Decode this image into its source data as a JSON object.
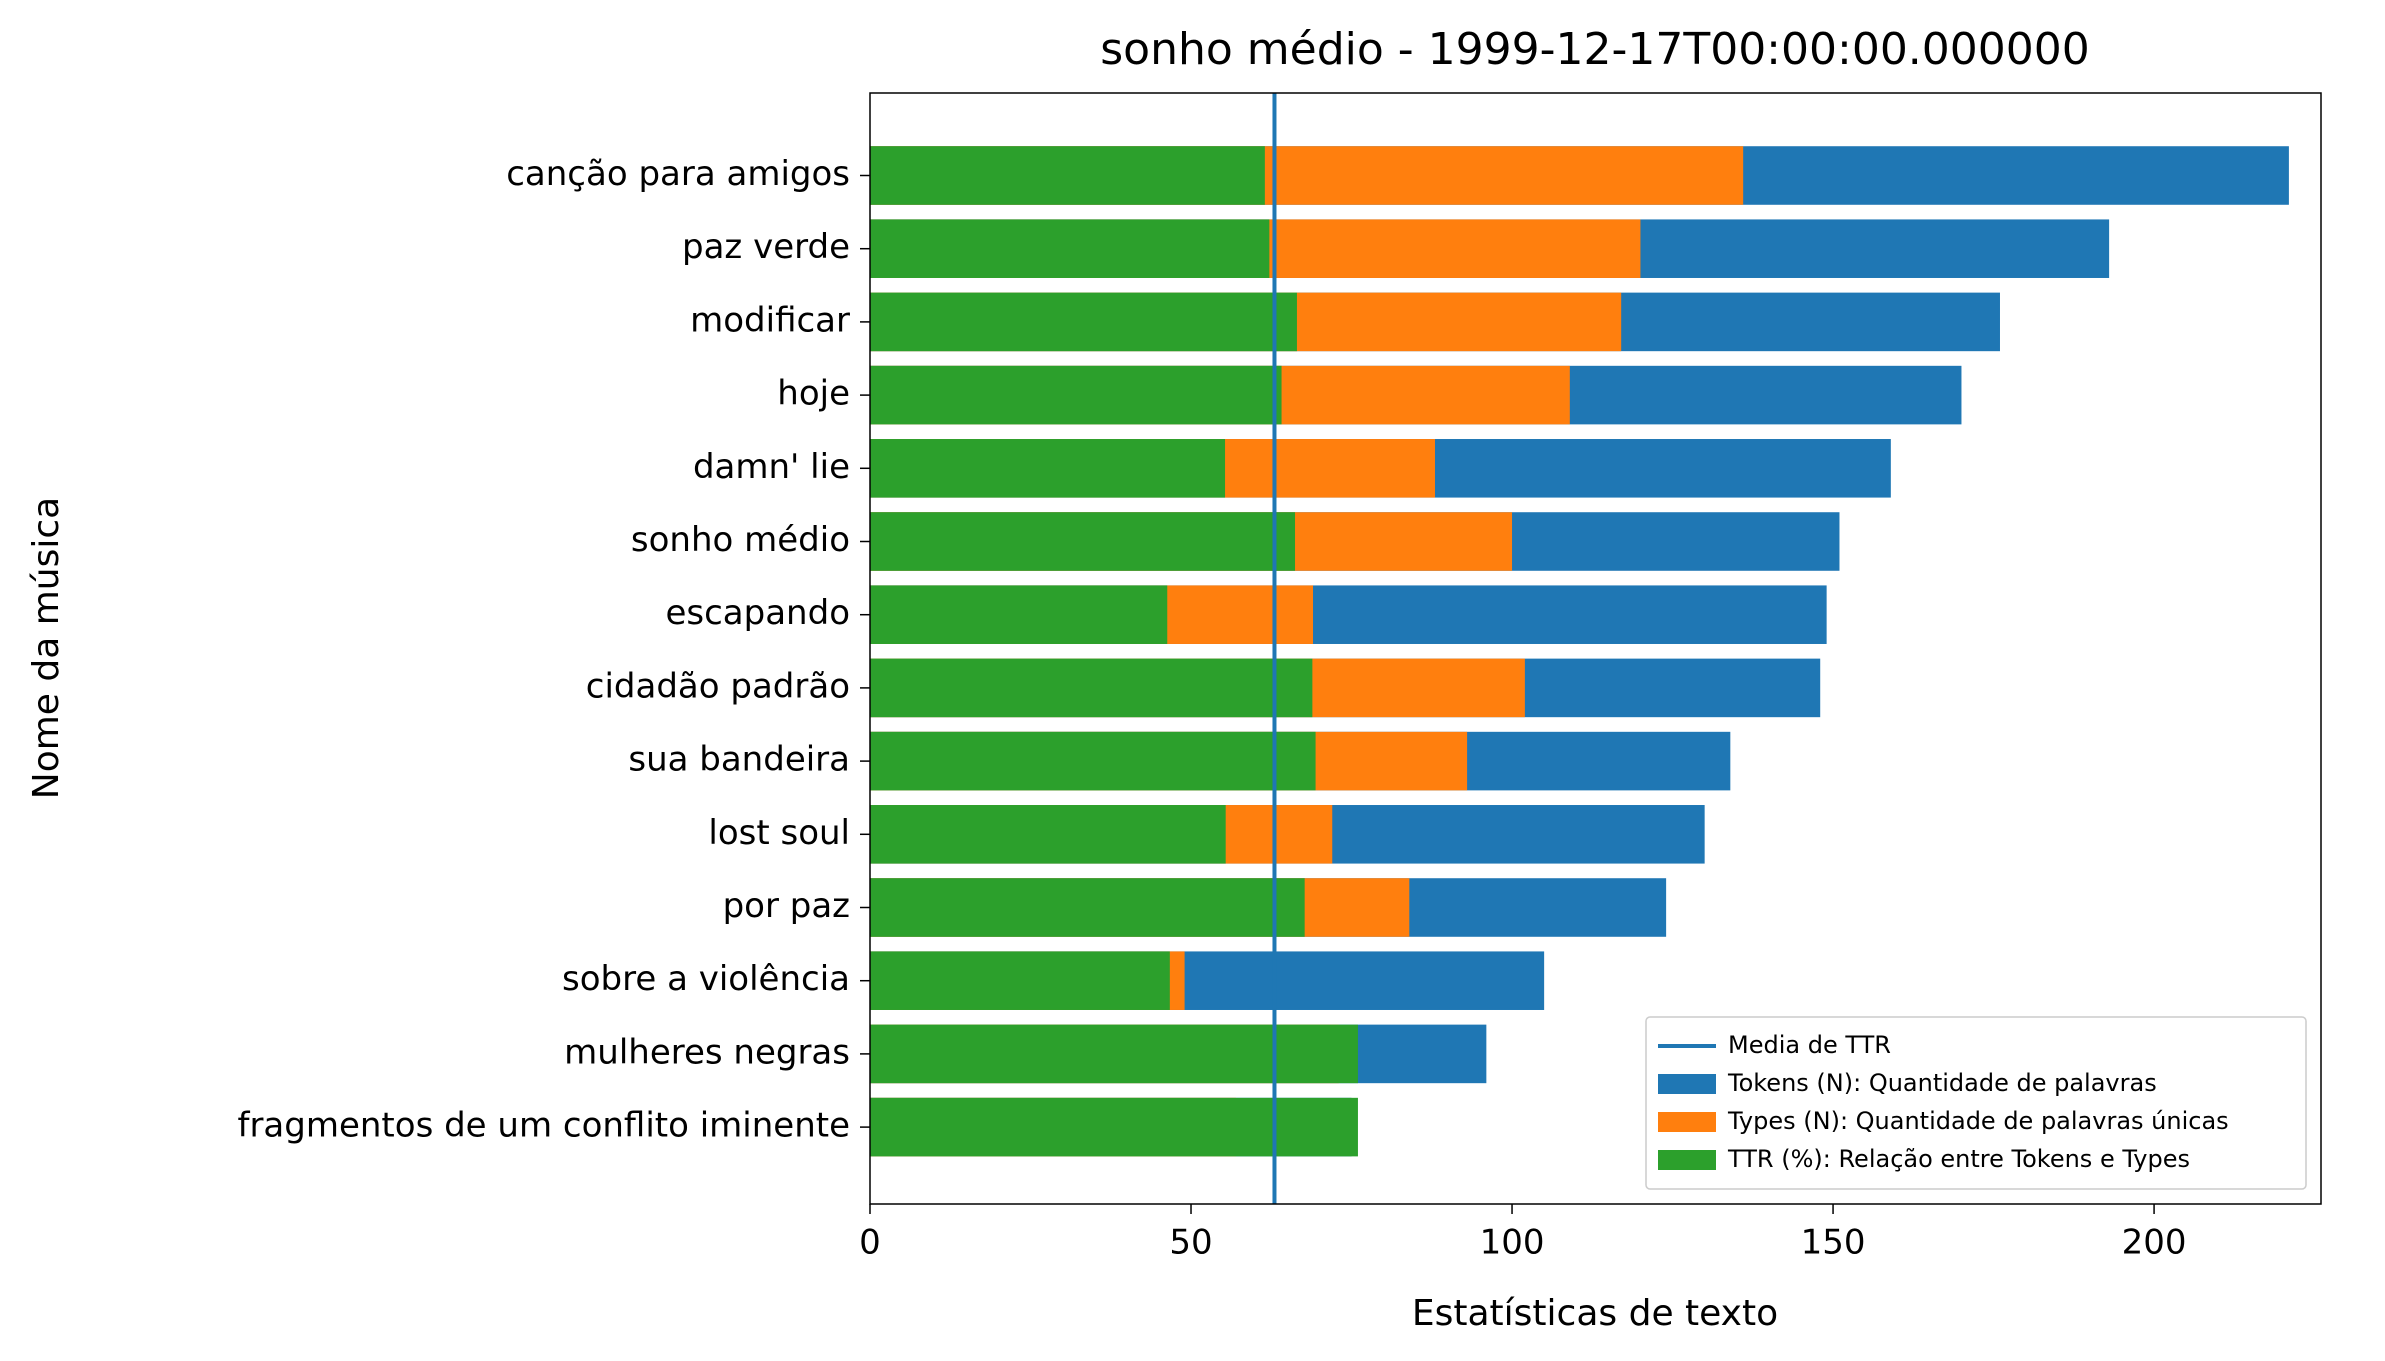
{
  "chart_data": {
    "type": "barh",
    "title": "sonho médio - 1999-12-17T00:00:00.000000",
    "xlabel": "Estatísticas de texto",
    "ylabel": "Nome da música",
    "categories": [
      "canção para amigos",
      "paz verde",
      "modificar",
      "hoje",
      "damn' lie",
      "sonho médio",
      "escapando",
      "cidadão padrão",
      "sua bandeira",
      "lost soul",
      "por paz",
      "sobre a violência",
      "mulheres negras",
      "fragmentos de um conflito iminente"
    ],
    "series": [
      {
        "name": "Tokens (N): Quantidade de palavras",
        "color": "#1f77b4",
        "values": [
          221,
          193,
          176,
          170,
          159,
          151,
          149,
          148,
          134,
          130,
          124,
          105,
          96,
          75
        ]
      },
      {
        "name": "Types (N): Quantidade de palavras únicas",
        "color": "#ff7f0e",
        "values": [
          136,
          120,
          117,
          109,
          88,
          100,
          69,
          102,
          93,
          72,
          84,
          49,
          73,
          57
        ]
      },
      {
        "name": "TTR (%): Relação entre Tokens e Types",
        "color": "#2ca02c",
        "values": [
          61.5,
          62.2,
          66.5,
          64.1,
          55.3,
          66.2,
          46.3,
          68.9,
          69.4,
          55.4,
          67.7,
          46.7,
          76.0,
          76.0
        ]
      }
    ],
    "mean_line": {
      "name": "Media de TTR",
      "color": "#1f77b4",
      "value": 63.0
    },
    "xlim": [
      0,
      226
    ],
    "xticks": [
      0,
      50,
      100,
      150,
      200
    ],
    "legend": "lower right"
  }
}
